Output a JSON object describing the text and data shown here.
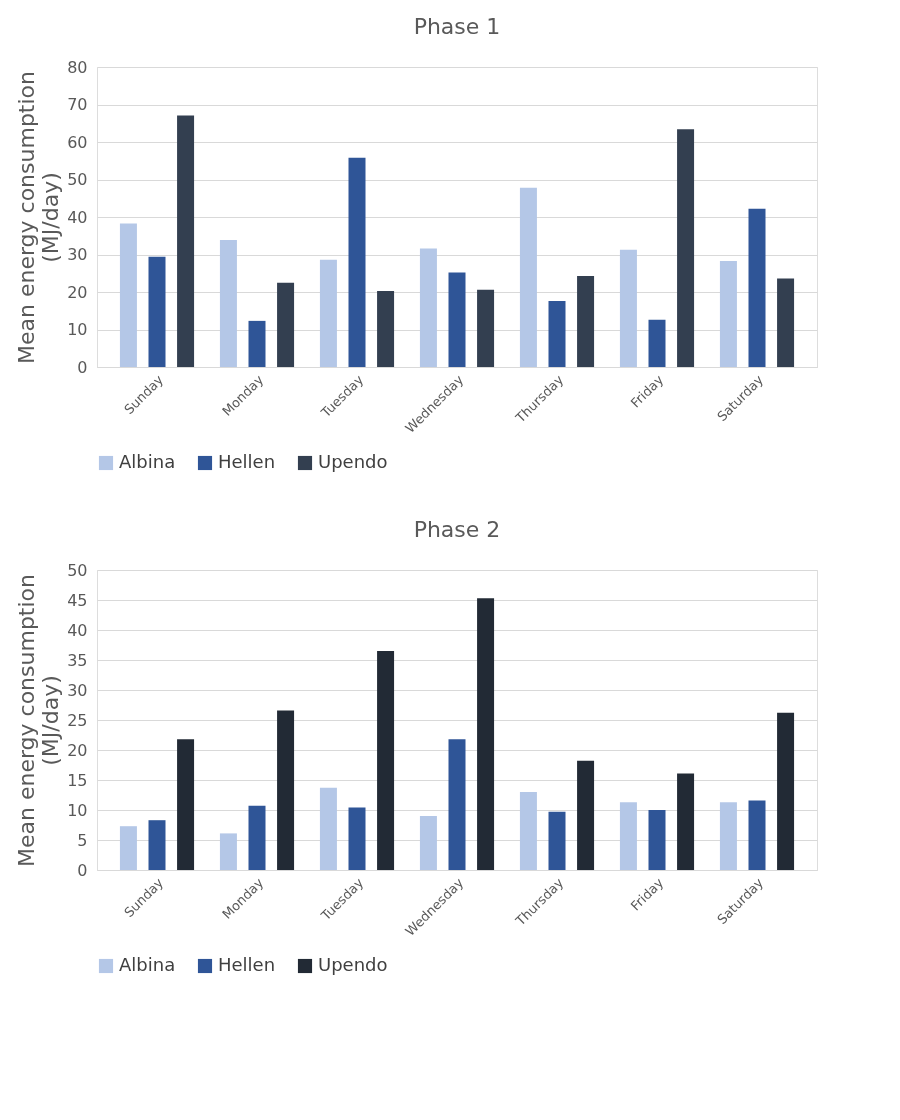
{
  "chart_data": [
    {
      "type": "bar",
      "title": "Phase 1",
      "ylabel": "Mean energy consumption\n(MJ/day)",
      "categories": [
        "Sunday",
        "Monday",
        "Tuesday",
        "Wednesday",
        "Thursday",
        "Friday",
        "Saturday"
      ],
      "series": [
        {
          "name": "Albina",
          "color": "#b4c7e7",
          "values": [
            38.3,
            33.9,
            28.6,
            31.6,
            47.8,
            31.3,
            28.3
          ]
        },
        {
          "name": "Hellen",
          "color": "#2f5597",
          "values": [
            29.4,
            12.3,
            55.8,
            25.2,
            17.6,
            12.6,
            42.2
          ]
        },
        {
          "name": "Upendo",
          "color": "#333f50",
          "values": [
            67.1,
            22.5,
            20.3,
            20.6,
            24.3,
            63.4,
            23.6
          ]
        }
      ],
      "ylim": [
        0,
        80
      ],
      "yticks": [
        0,
        10,
        20,
        30,
        40,
        50,
        60,
        70,
        80
      ],
      "grid": "y",
      "legend": "bottom"
    },
    {
      "type": "bar",
      "title": "Phase 2",
      "ylabel": "Mean energy consumption\n(MJ/day)",
      "categories": [
        "Sunday",
        "Monday",
        "Tuesday",
        "Wednesday",
        "Thursday",
        "Friday",
        "Saturday"
      ],
      "series": [
        {
          "name": "Albina",
          "color": "#b4c7e7",
          "values": [
            7.3,
            6.1,
            13.7,
            9.0,
            13.0,
            11.3,
            11.3
          ]
        },
        {
          "name": "Hellen",
          "color": "#2f5597",
          "values": [
            8.3,
            10.7,
            10.4,
            21.8,
            9.7,
            10.0,
            11.6
          ]
        },
        {
          "name": "Upendo",
          "color": "#222a35",
          "values": [
            21.8,
            26.6,
            36.5,
            45.3,
            18.2,
            16.1,
            26.2
          ]
        }
      ],
      "ylim": [
        0,
        50
      ],
      "yticks": [
        0,
        5,
        10,
        15,
        20,
        25,
        30,
        35,
        40,
        45,
        50
      ],
      "grid": "y",
      "legend": "bottom"
    }
  ]
}
